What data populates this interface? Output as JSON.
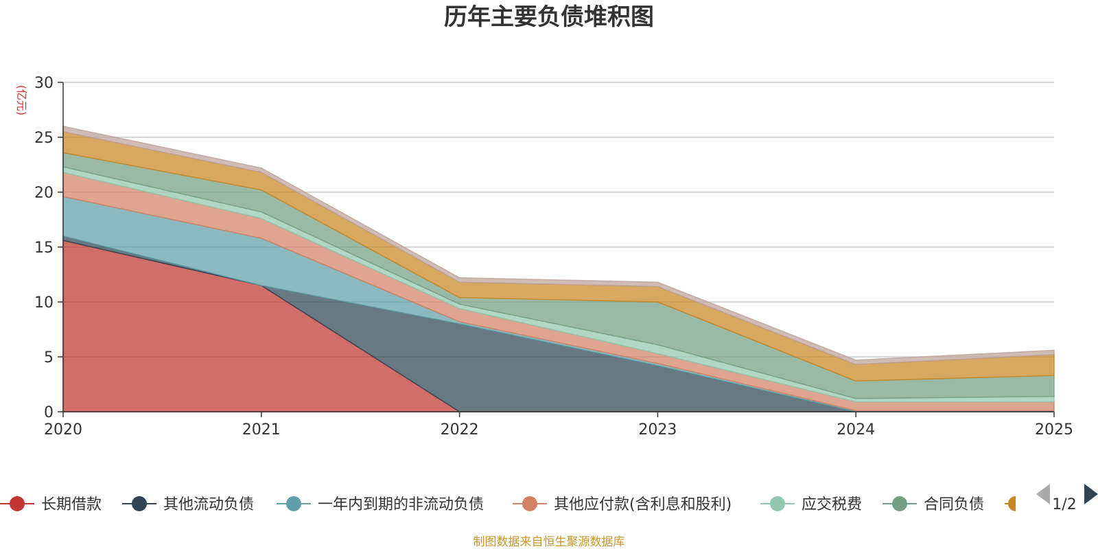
{
  "chart_data": {
    "type": "area",
    "title": "历年主要负债堆积图",
    "ylabel": "(亿元)",
    "ylim": [
      0,
      30
    ],
    "yticks": [
      0,
      5,
      10,
      15,
      20,
      25,
      30
    ],
    "x": [
      "2020",
      "2021",
      "2022",
      "2023",
      "2024",
      "2025"
    ],
    "stacked": true,
    "grid": true,
    "legend_position": "bottom",
    "series": [
      {
        "name": "长期借款",
        "color": "#c23531",
        "values": [
          15.6,
          11.5,
          0,
          0,
          0,
          0
        ]
      },
      {
        "name": "其他流动负债",
        "color": "#2f4554",
        "values": [
          0.4,
          0,
          8.0,
          4.2,
          0,
          0
        ]
      },
      {
        "name": "一年内到期的非流动负债",
        "color": "#61a0a8",
        "values": [
          3.6,
          4.3,
          0.2,
          0.2,
          0.1,
          0.1
        ]
      },
      {
        "name": "其他应付款(含利息和股利)",
        "color": "#d48265",
        "values": [
          2.2,
          1.8,
          1.2,
          0.9,
          0.8,
          0.8
        ]
      },
      {
        "name": "应交税费",
        "color": "#91c7ae",
        "values": [
          0.5,
          0.6,
          0.4,
          0.8,
          0.3,
          0.5
        ]
      },
      {
        "name": "合同负债",
        "color": "#749f83",
        "values": [
          1.3,
          2.0,
          0.6,
          3.9,
          1.6,
          1.9
        ]
      },
      {
        "name": "",
        "color": "#ca8622",
        "values": [
          1.9,
          1.6,
          1.4,
          1.4,
          1.5,
          1.9
        ]
      },
      {
        "name": "",
        "color": "#bda29a",
        "values": [
          0.5,
          0.4,
          0.4,
          0.4,
          0.4,
          0.4
        ]
      }
    ]
  },
  "legend": {
    "page": "1/2"
  },
  "source": "制图数据来自恒生聚源数据库"
}
